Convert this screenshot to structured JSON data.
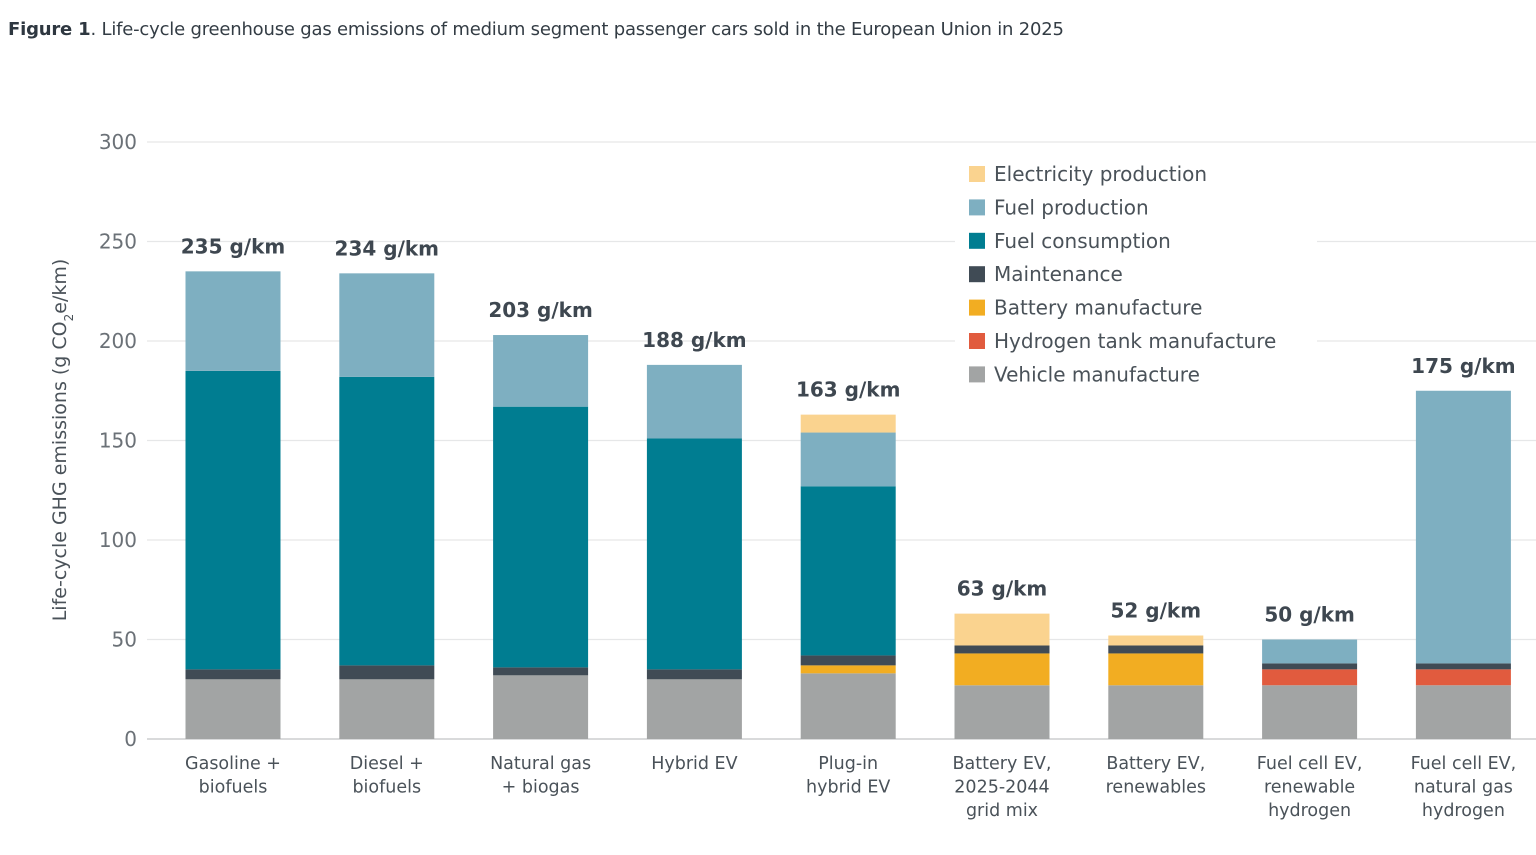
{
  "figure": {
    "label": "Figure 1",
    "caption": ". Life-cycle greenhouse gas emissions of medium segment passenger cars sold in the European Union in 2025"
  },
  "chart_data": {
    "type": "bar",
    "stacked": true,
    "title": "Life-cycle greenhouse gas emissions of medium segment passenger cars sold in the European Union in 2025",
    "xlabel": "",
    "ylabel": "Life-cycle GHG emissions (g CO2e/km)",
    "ylabel_parts": {
      "before": "Life-cycle GHG emissions (g CO",
      "sub": "2",
      "after": "e/km)"
    },
    "ylim": [
      0,
      300
    ],
    "yticks": [
      0,
      50,
      100,
      150,
      200,
      250,
      300
    ],
    "grid": true,
    "legend_position": "top-right",
    "categories": [
      [
        "Gasoline +",
        "biofuels"
      ],
      [
        "Diesel +",
        "biofuels"
      ],
      [
        "Natural gas",
        "+ biogas"
      ],
      [
        "Hybrid EV"
      ],
      [
        "Plug-in",
        "hybrid EV"
      ],
      [
        "Battery EV,",
        "2025-2044",
        "grid mix"
      ],
      [
        "Battery EV,",
        "renewables"
      ],
      [
        "Fuel cell EV,",
        "renewable",
        "hydrogen"
      ],
      [
        "Fuel cell EV,",
        "natural gas",
        "hydrogen"
      ]
    ],
    "totals": [
      235,
      234,
      203,
      188,
      163,
      63,
      52,
      50,
      175
    ],
    "total_labels": [
      "235 g/km",
      "234 g/km",
      "203 g/km",
      "188 g/km",
      "163 g/km",
      "63 g/km",
      "52 g/km",
      "50 g/km",
      "175 g/km"
    ],
    "series": [
      {
        "name": "Vehicle manufacture",
        "color": "#a2a4a4",
        "values": [
          30,
          30,
          32,
          30,
          33,
          27,
          27,
          27,
          27
        ]
      },
      {
        "name": "Hydrogen tank manufacture",
        "color": "#e15b3e",
        "values": [
          0,
          0,
          0,
          0,
          0,
          0,
          0,
          8,
          8
        ]
      },
      {
        "name": "Battery manufacture",
        "color": "#f2ad22",
        "values": [
          0,
          0,
          0,
          0,
          4,
          16,
          16,
          0,
          0
        ]
      },
      {
        "name": "Maintenance",
        "color": "#404b55",
        "values": [
          5,
          7,
          4,
          5,
          5,
          4,
          4,
          3,
          3
        ]
      },
      {
        "name": "Fuel consumption",
        "color": "#007d91",
        "values": [
          150,
          145,
          131,
          116,
          85,
          0,
          0,
          0,
          0
        ]
      },
      {
        "name": "Fuel production",
        "color": "#7eafc1",
        "values": [
          50,
          52,
          36,
          37,
          27,
          0,
          0,
          12,
          137
        ]
      },
      {
        "name": "Electricity production",
        "color": "#fad38f",
        "values": [
          0,
          0,
          0,
          0,
          9,
          16,
          5,
          0,
          0
        ]
      }
    ],
    "legend_order": [
      "Electricity production",
      "Fuel production",
      "Fuel consumption",
      "Maintenance",
      "Battery manufacture",
      "Hydrogen tank manufacture",
      "Vehicle manufacture"
    ]
  }
}
